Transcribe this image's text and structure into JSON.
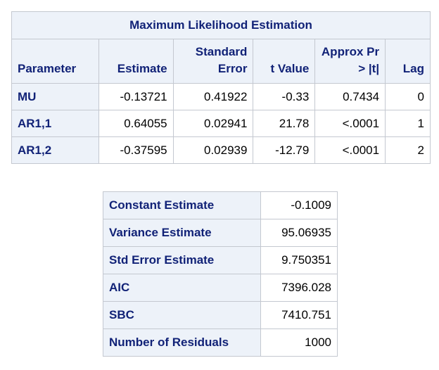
{
  "estimation_table": {
    "title": "Maximum Likelihood Estimation",
    "columns": [
      "Parameter",
      "Estimate",
      "Standard Error",
      "t Value",
      "Approx Pr > |t|",
      "Lag"
    ],
    "rows": [
      [
        "MU",
        "-0.13721",
        "0.41922",
        "-0.33",
        "0.7434",
        "0"
      ],
      [
        "AR1,1",
        "0.64055",
        "0.02941",
        "21.78",
        "<.0001",
        "1"
      ],
      [
        "AR1,2",
        "-0.37595",
        "0.02939",
        "-12.79",
        "<.0001",
        "2"
      ]
    ]
  },
  "stats_table": {
    "rows": [
      [
        "Constant Estimate",
        "-0.1009"
      ],
      [
        "Variance Estimate",
        "95.06935"
      ],
      [
        "Std Error Estimate",
        "9.750351"
      ],
      [
        "AIC",
        "7396.028"
      ],
      [
        "SBC",
        "7410.751"
      ],
      [
        "Number of Residuals",
        "1000"
      ]
    ]
  }
}
